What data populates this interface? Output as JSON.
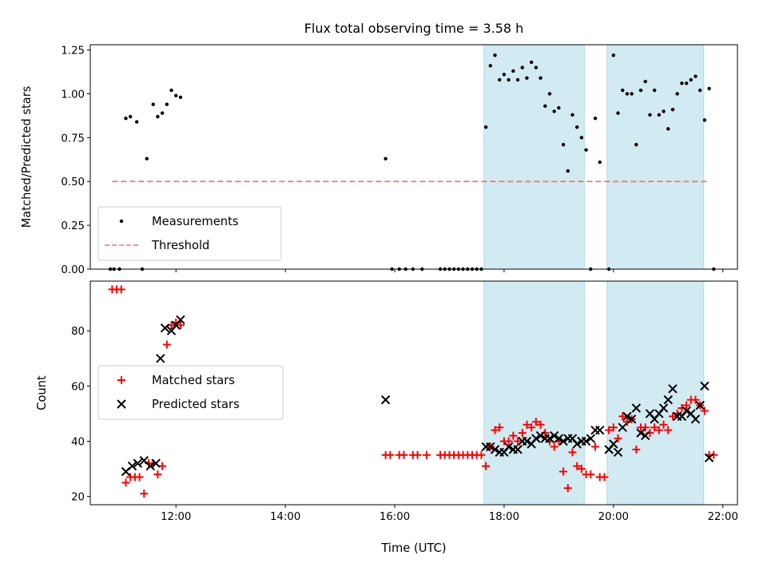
{
  "chart_data": [
    {
      "type": "scatter",
      "title": "Flux total observing time = 3.58 h",
      "xlabel": "",
      "ylabel": "Matched/Predicted stars",
      "xlim": [
        "10:26",
        "22:16"
      ],
      "ylim": [
        0,
        1.28
      ],
      "y_ticks": [
        "0.00",
        "0.25",
        "0.50",
        "0.75",
        "1.00",
        "1.25"
      ],
      "x_ticks": [
        "12:00",
        "14:00",
        "16:00",
        "18:00",
        "20:00",
        "22:00"
      ],
      "legend_position": "lower-left",
      "shaded_intervals": [
        [
          "17:38",
          "19:28"
        ],
        [
          "19:53",
          "21:39"
        ]
      ],
      "shade_color": "#add8e6",
      "threshold": {
        "name": "Threshold",
        "value": 0.5,
        "x_range": [
          "10:50",
          "21:45"
        ],
        "color": "#ff6f6f"
      },
      "series": [
        {
          "name": "Measurements",
          "color": "#000000",
          "marker": "dot",
          "points": [
            [
              "10:48",
              0
            ],
            [
              "10:52",
              0
            ],
            [
              "10:58",
              0
            ],
            [
              "11:05",
              0.86
            ],
            [
              "11:10",
              0.87
            ],
            [
              "11:17",
              0.84
            ],
            [
              "11:23",
              0
            ],
            [
              "11:28",
              0.63
            ],
            [
              "11:35",
              0.94
            ],
            [
              "11:40",
              0.87
            ],
            [
              "11:45",
              0.89
            ],
            [
              "11:50",
              0.94
            ],
            [
              "11:55",
              1.02
            ],
            [
              "12:00",
              0.99
            ],
            [
              "12:05",
              0.98
            ],
            [
              "15:50",
              0.63
            ],
            [
              "15:57",
              0
            ],
            [
              "16:05",
              0
            ],
            [
              "16:12",
              0
            ],
            [
              "16:20",
              0
            ],
            [
              "16:30",
              0
            ],
            [
              "16:50",
              0
            ],
            [
              "16:55",
              0
            ],
            [
              "17:00",
              0
            ],
            [
              "17:05",
              0
            ],
            [
              "17:10",
              0
            ],
            [
              "17:15",
              0
            ],
            [
              "17:20",
              0
            ],
            [
              "17:25",
              0
            ],
            [
              "17:30",
              0
            ],
            [
              "17:35",
              0
            ],
            [
              "17:40",
              0.81
            ],
            [
              "17:45",
              1.16
            ],
            [
              "17:50",
              1.22
            ],
            [
              "17:55",
              1.08
            ],
            [
              "18:00",
              1.11
            ],
            [
              "18:05",
              1.08
            ],
            [
              "18:10",
              1.13
            ],
            [
              "18:15",
              1.08
            ],
            [
              "18:20",
              1.15
            ],
            [
              "18:25",
              1.09
            ],
            [
              "18:30",
              1.18
            ],
            [
              "18:35",
              1.15
            ],
            [
              "18:40",
              1.09
            ],
            [
              "18:45",
              0.93
            ],
            [
              "18:50",
              1.0
            ],
            [
              "18:55",
              0.9
            ],
            [
              "19:00",
              0.92
            ],
            [
              "19:05",
              0.71
            ],
            [
              "19:10",
              0.56
            ],
            [
              "19:15",
              0.88
            ],
            [
              "19:20",
              0.81
            ],
            [
              "19:25",
              0.75
            ],
            [
              "19:30",
              0.68
            ],
            [
              "19:35",
              0
            ],
            [
              "19:40",
              0.86
            ],
            [
              "19:45",
              0.61
            ],
            [
              "19:55",
              0
            ],
            [
              "20:00",
              1.22
            ],
            [
              "20:05",
              0.89
            ],
            [
              "20:10",
              1.02
            ],
            [
              "20:15",
              1.0
            ],
            [
              "20:20",
              1.0
            ],
            [
              "20:25",
              0.71
            ],
            [
              "20:30",
              1.02
            ],
            [
              "20:35",
              1.07
            ],
            [
              "20:40",
              0.88
            ],
            [
              "20:45",
              1.02
            ],
            [
              "20:50",
              0.88
            ],
            [
              "20:55",
              0.9
            ],
            [
              "21:00",
              0.8
            ],
            [
              "21:05",
              0.91
            ],
            [
              "21:10",
              1.0
            ],
            [
              "21:15",
              1.06
            ],
            [
              "21:20",
              1.06
            ],
            [
              "21:25",
              1.08
            ],
            [
              "21:30",
              1.1
            ],
            [
              "21:35",
              1.02
            ],
            [
              "21:40",
              0.85
            ],
            [
              "21:45",
              1.03
            ],
            [
              "21:50",
              0
            ]
          ]
        }
      ]
    },
    {
      "type": "scatter",
      "title": "",
      "xlabel": "Time (UTC)",
      "ylabel": "Count",
      "xlim": [
        "10:26",
        "22:16"
      ],
      "ylim": [
        17,
        98
      ],
      "y_ticks": [
        "20",
        "40",
        "60",
        "80"
      ],
      "x_ticks": [
        "12:00",
        "14:00",
        "16:00",
        "18:00",
        "20:00",
        "22:00"
      ],
      "legend_position": "center-left",
      "shaded_intervals": [
        [
          "17:38",
          "19:28"
        ],
        [
          "19:53",
          "21:39"
        ]
      ],
      "shade_color": "#add8e6",
      "series": [
        {
          "name": "Matched stars",
          "color": "#ff0000",
          "marker": "plus",
          "points": [
            [
              "10:50",
              95
            ],
            [
              "10:55",
              95
            ],
            [
              "11:00",
              95
            ],
            [
              "11:05",
              25
            ],
            [
              "11:10",
              27
            ],
            [
              "11:15",
              27
            ],
            [
              "11:20",
              27
            ],
            [
              "11:25",
              21
            ],
            [
              "11:30",
              32
            ],
            [
              "11:35",
              32
            ],
            [
              "11:40",
              28
            ],
            [
              "11:45",
              31
            ],
            [
              "11:50",
              75
            ],
            [
              "11:55",
              82
            ],
            [
              "12:00",
              83
            ],
            [
              "12:05",
              82
            ],
            [
              "15:50",
              35
            ],
            [
              "15:55",
              35
            ],
            [
              "16:05",
              35
            ],
            [
              "16:10",
              35
            ],
            [
              "16:20",
              35
            ],
            [
              "16:25",
              35
            ],
            [
              "16:35",
              35
            ],
            [
              "16:50",
              35
            ],
            [
              "16:55",
              35
            ],
            [
              "17:00",
              35
            ],
            [
              "17:05",
              35
            ],
            [
              "17:10",
              35
            ],
            [
              "17:15",
              35
            ],
            [
              "17:20",
              35
            ],
            [
              "17:25",
              35
            ],
            [
              "17:30",
              35
            ],
            [
              "17:35",
              35
            ],
            [
              "17:40",
              31
            ],
            [
              "17:45",
              38
            ],
            [
              "17:50",
              44
            ],
            [
              "17:55",
              45
            ],
            [
              "18:00",
              40
            ],
            [
              "18:05",
              40
            ],
            [
              "18:10",
              42
            ],
            [
              "18:15",
              40
            ],
            [
              "18:20",
              43
            ],
            [
              "18:25",
              46
            ],
            [
              "18:30",
              45
            ],
            [
              "18:35",
              47
            ],
            [
              "18:40",
              46
            ],
            [
              "18:45",
              43
            ],
            [
              "18:50",
              40
            ],
            [
              "18:55",
              38
            ],
            [
              "19:00",
              40
            ],
            [
              "19:05",
              29
            ],
            [
              "19:10",
              23
            ],
            [
              "19:15",
              36
            ],
            [
              "19:20",
              31
            ],
            [
              "19:25",
              30
            ],
            [
              "19:30",
              28
            ],
            [
              "19:35",
              28
            ],
            [
              "19:40",
              38
            ],
            [
              "19:45",
              27
            ],
            [
              "19:50",
              27
            ],
            [
              "19:55",
              44
            ],
            [
              "20:00",
              45
            ],
            [
              "20:05",
              41
            ],
            [
              "20:10",
              49
            ],
            [
              "20:15",
              47
            ],
            [
              "20:20",
              48
            ],
            [
              "20:25",
              37
            ],
            [
              "20:30",
              45
            ],
            [
              "20:35",
              45
            ],
            [
              "20:40",
              43
            ],
            [
              "20:45",
              45
            ],
            [
              "20:50",
              44
            ],
            [
              "20:55",
              46
            ],
            [
              "21:00",
              44
            ],
            [
              "21:05",
              49
            ],
            [
              "21:10",
              50
            ],
            [
              "21:15",
              52
            ],
            [
              "21:20",
              53
            ],
            [
              "21:25",
              55
            ],
            [
              "21:30",
              55
            ],
            [
              "21:35",
              53
            ],
            [
              "21:40",
              51
            ],
            [
              "21:45",
              35
            ],
            [
              "21:50",
              35
            ]
          ]
        },
        {
          "name": "Predicted stars",
          "color": "#000000",
          "marker": "x",
          "points": [
            [
              "11:05",
              29
            ],
            [
              "11:12",
              31
            ],
            [
              "11:18",
              32
            ],
            [
              "11:25",
              33
            ],
            [
              "11:32",
              31
            ],
            [
              "11:38",
              32
            ],
            [
              "11:43",
              70
            ],
            [
              "11:48",
              81
            ],
            [
              "11:55",
              80
            ],
            [
              "12:00",
              82
            ],
            [
              "12:05",
              84
            ],
            [
              "15:50",
              55
            ],
            [
              "17:40",
              38
            ],
            [
              "17:45",
              38
            ],
            [
              "17:50",
              37
            ],
            [
              "17:55",
              36
            ],
            [
              "18:00",
              36
            ],
            [
              "18:05",
              38
            ],
            [
              "18:10",
              37
            ],
            [
              "18:15",
              37
            ],
            [
              "18:20",
              40
            ],
            [
              "18:25",
              40
            ],
            [
              "18:30",
              39
            ],
            [
              "18:35",
              41
            ],
            [
              "18:40",
              42
            ],
            [
              "18:45",
              41
            ],
            [
              "18:50",
              41
            ],
            [
              "18:55",
              42
            ],
            [
              "19:00",
              41
            ],
            [
              "19:05",
              40
            ],
            [
              "19:10",
              41
            ],
            [
              "19:15",
              41
            ],
            [
              "19:20",
              39
            ],
            [
              "19:25",
              40
            ],
            [
              "19:30",
              40
            ],
            [
              "19:35",
              41
            ],
            [
              "19:40",
              44
            ],
            [
              "19:45",
              44
            ],
            [
              "19:55",
              37
            ],
            [
              "20:00",
              39
            ],
            [
              "20:05",
              36
            ],
            [
              "20:10",
              45
            ],
            [
              "20:15",
              49
            ],
            [
              "20:20",
              48
            ],
            [
              "20:25",
              52
            ],
            [
              "20:30",
              43
            ],
            [
              "20:35",
              42
            ],
            [
              "20:40",
              50
            ],
            [
              "20:45",
              48
            ],
            [
              "20:50",
              50
            ],
            [
              "20:55",
              52
            ],
            [
              "21:00",
              55
            ],
            [
              "21:05",
              59
            ],
            [
              "21:10",
              49
            ],
            [
              "21:15",
              49
            ],
            [
              "21:20",
              51
            ],
            [
              "21:25",
              50
            ],
            [
              "21:30",
              48
            ],
            [
              "21:35",
              53
            ],
            [
              "21:40",
              60
            ],
            [
              "21:45",
              34
            ]
          ]
        }
      ]
    }
  ]
}
